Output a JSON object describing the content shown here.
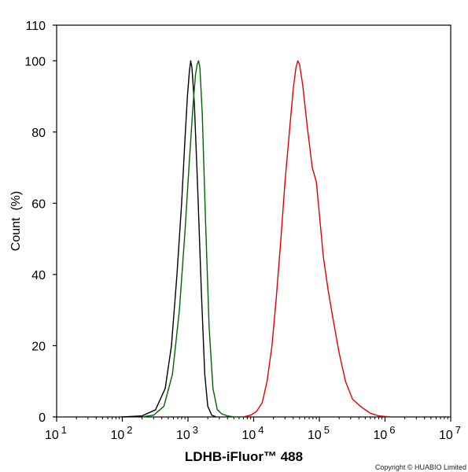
{
  "chart_data": {
    "type": "line",
    "title": "",
    "xlabel": "LDHB-iFluor™ 488",
    "ylabel": "Count  (%)",
    "x_scale": "log",
    "xlim": [
      10,
      10000000
    ],
    "ylim": [
      0,
      110
    ],
    "x_ticks": [
      {
        "value": 10,
        "base": "10",
        "exp": "1"
      },
      {
        "value": 100,
        "base": "10",
        "exp": "2"
      },
      {
        "value": 1000,
        "base": "10",
        "exp": "3"
      },
      {
        "value": 10000,
        "base": "10",
        "exp": "4"
      },
      {
        "value": 100000,
        "base": "10",
        "exp": "5"
      },
      {
        "value": 1000000,
        "base": "10",
        "exp": "6"
      },
      {
        "value": 10000000,
        "base": "10",
        "exp": "7"
      }
    ],
    "y_ticks": [
      "0",
      "20",
      "40",
      "60",
      "80",
      "100",
      "110"
    ],
    "grid": false,
    "series": [
      {
        "color": "#000000",
        "points": [
          [
            100,
            0
          ],
          [
            200,
            0.3
          ],
          [
            320,
            2
          ],
          [
            450,
            8
          ],
          [
            560,
            20
          ],
          [
            680,
            40
          ],
          [
            800,
            60
          ],
          [
            900,
            78
          ],
          [
            980,
            90
          ],
          [
            1050,
            97
          ],
          [
            1100,
            100
          ],
          [
            1150,
            98
          ],
          [
            1250,
            88
          ],
          [
            1400,
            65
          ],
          [
            1600,
            35
          ],
          [
            1800,
            12
          ],
          [
            2000,
            3
          ],
          [
            2300,
            0.5
          ],
          [
            2700,
            0
          ]
        ]
      },
      {
        "color": "#006400",
        "points": [
          [
            200,
            0
          ],
          [
            300,
            0.5
          ],
          [
            430,
            3
          ],
          [
            580,
            12
          ],
          [
            740,
            30
          ],
          [
            900,
            52
          ],
          [
            1050,
            72
          ],
          [
            1200,
            88
          ],
          [
            1300,
            96
          ],
          [
            1380,
            99
          ],
          [
            1450,
            100
          ],
          [
            1520,
            98
          ],
          [
            1650,
            85
          ],
          [
            1850,
            55
          ],
          [
            2100,
            25
          ],
          [
            2400,
            8
          ],
          [
            2800,
            2
          ],
          [
            3300,
            0.8
          ],
          [
            4000,
            0.3
          ],
          [
            5000,
            0
          ]
        ]
      },
      {
        "color": "#e00000",
        "points": [
          [
            7000,
            0
          ],
          [
            9000,
            0.5
          ],
          [
            11000,
            1.5
          ],
          [
            13500,
            4
          ],
          [
            16000,
            10
          ],
          [
            19000,
            20
          ],
          [
            22000,
            33
          ],
          [
            26000,
            50
          ],
          [
            30000,
            66
          ],
          [
            35000,
            80
          ],
          [
            40000,
            92
          ],
          [
            44000,
            98
          ],
          [
            47000,
            100
          ],
          [
            50000,
            99
          ],
          [
            56000,
            93
          ],
          [
            65000,
            82
          ],
          [
            78000,
            70
          ],
          [
            90000,
            66
          ],
          [
            100000,
            57
          ],
          [
            115000,
            45
          ],
          [
            135000,
            36
          ],
          [
            160000,
            28
          ],
          [
            200000,
            18
          ],
          [
            250000,
            10
          ],
          [
            320000,
            5
          ],
          [
            420000,
            3
          ],
          [
            600000,
            1
          ],
          [
            800000,
            0.3
          ],
          [
            1200000,
            0
          ]
        ]
      }
    ]
  },
  "copyright": "Copyright © HUABIO Limited"
}
